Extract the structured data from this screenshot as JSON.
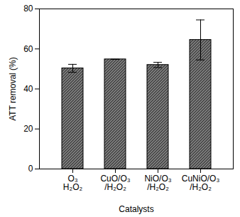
{
  "chart_data": {
    "type": "bar",
    "x_label": "Catalysts",
    "y_label": "ATT removal (%)",
    "categories": [
      "O₃\nH₂O₂",
      "CuO/O₃\n/H₂O₂",
      "NiO/O₃\n/H₂O₂",
      "CuNiO/O₃\n/H₂O₂"
    ],
    "values": [
      50.3,
      54.8,
      52.0,
      64.5
    ],
    "errors": [
      2.0,
      0,
      1.3,
      10.0
    ],
    "color": "#3a3a3a",
    "ylim": [
      0,
      80
    ],
    "yticks": [
      0,
      20,
      40,
      60,
      80
    ],
    "grid": false
  }
}
